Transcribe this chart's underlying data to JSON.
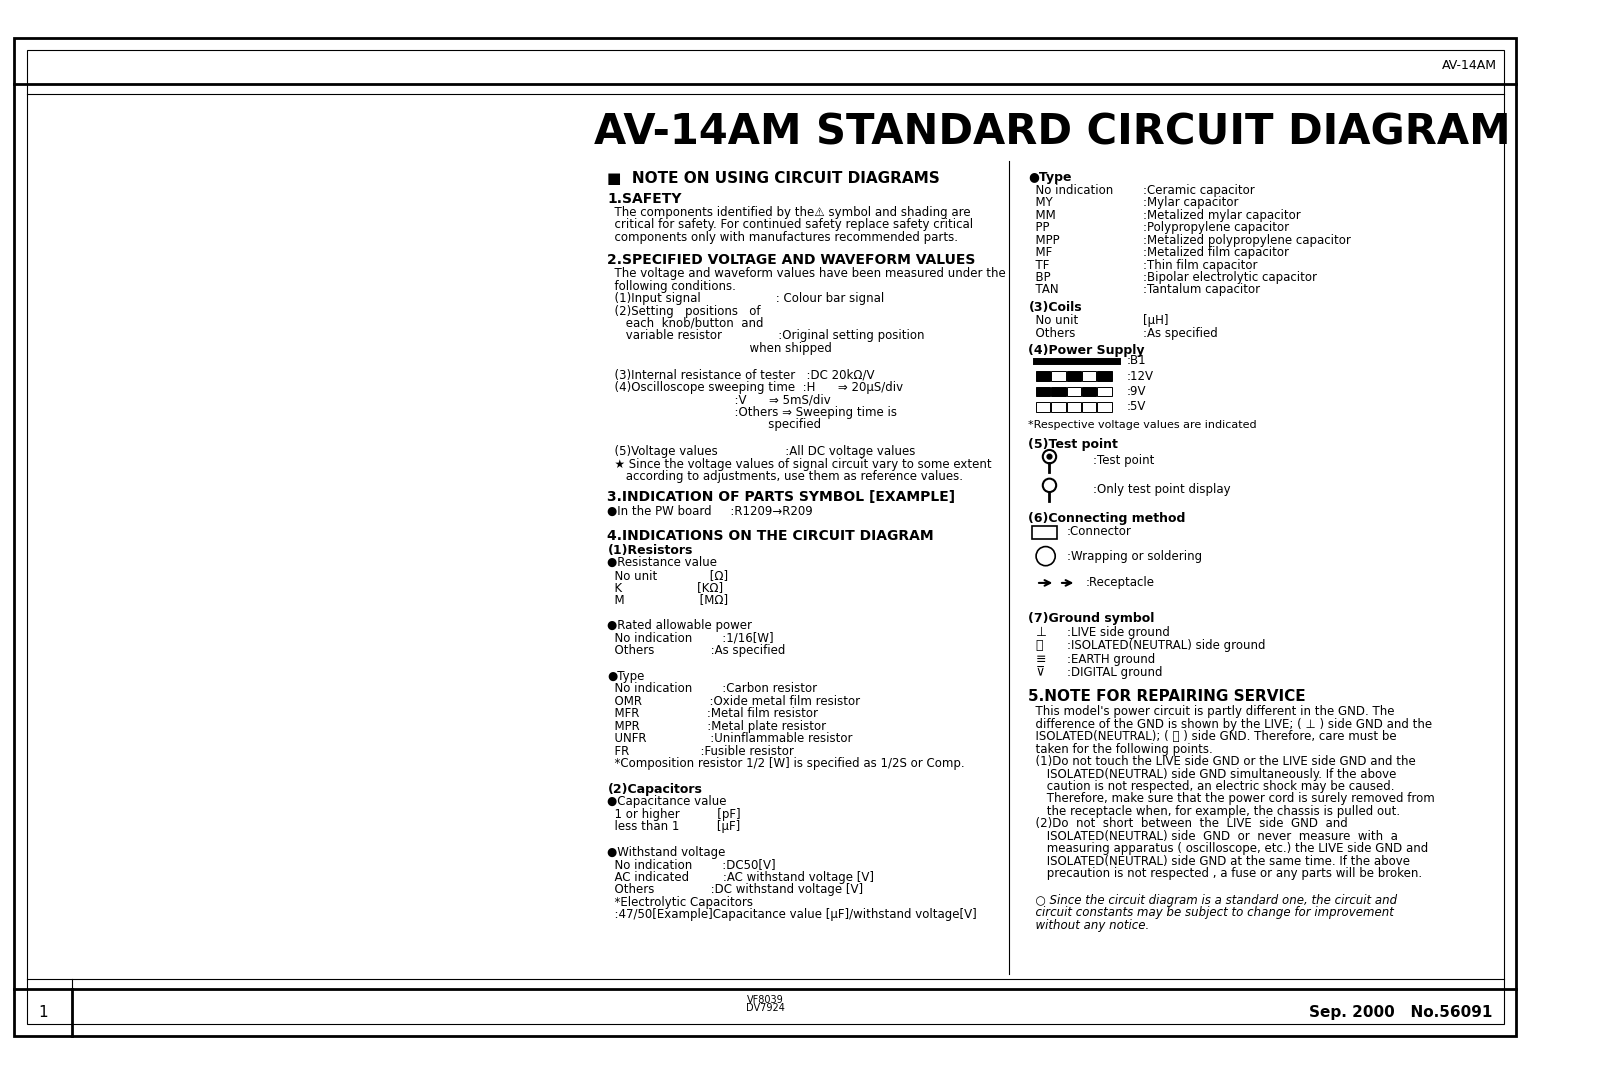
{
  "title": "AV-14AM STANDARD CIRCUIT DIAGRAM",
  "header_label": "AV-14AM",
  "page_number": "1",
  "date_info": "Sep. 2000   No.56091",
  "bg_color": "#ffffff",
  "section_note_title": "■  NOTE ON USING CIRCUIT DIAGRAMS",
  "s1_title": "1.SAFETY",
  "s2_title": "2.SPECIFIED VOLTAGE AND WAVEFORM VALUES",
  "s3_title": "3.INDICATION OF PARTS SYMBOL [EXAMPLE]",
  "s3_body": "●In the PW board     :R1209→R209",
  "s4_title": "4.INDICATIONS ON THE CIRCUIT DIAGRAM",
  "s4_sub1": "(1)Resistors",
  "right_col_type_title": "●Type",
  "right_col_coils_title": "(3)Coils",
  "right_col_power_title": "(4)Power Supply",
  "right_col_test_title": "(5)Test point",
  "right_col_connect_title": "(6)Connecting method",
  "right_col_ground_title": "(7)Ground symbol",
  "s5_title": "5.NOTE FOR REPAIRING SERVICE",
  "version_info": "VF8039\nDV7924"
}
